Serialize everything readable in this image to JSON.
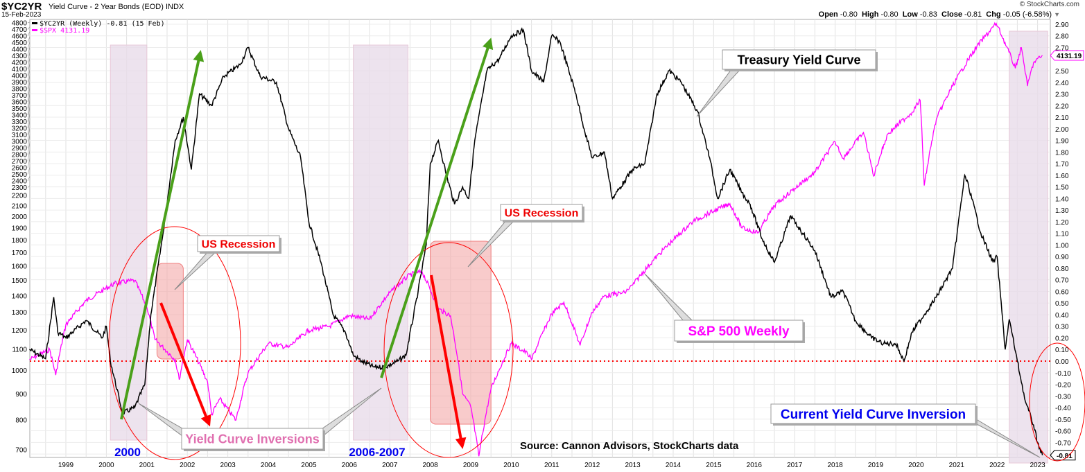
{
  "header": {
    "symbol": "$YC2YR",
    "title": "Yield Curve - 2 Year Bonds (EOD)",
    "exchange": "INDX",
    "date": "15-Feb-2023",
    "brand": "© StockCharts.com",
    "ohlc": {
      "open_label": "Open",
      "open": "-0.80",
      "high_label": "High",
      "high": "-0.80",
      "low_label": "Low",
      "low": "-0.83",
      "close_label": "Close",
      "close": "-0.81",
      "chg_label": "Chg",
      "chg": "-0.05 (-6.58%)"
    }
  },
  "legend": [
    {
      "text": "$YC2YR (Weekly) -0.81 (15 Feb)",
      "color": "#000000"
    },
    {
      "text": "$SPX 4131.19",
      "color": "#ff00ff"
    }
  ],
  "last_values": {
    "spx": "4131.19",
    "yc": "-0.81"
  },
  "annotations": {
    "us_recession_1": "US Recession",
    "us_recession_2": "US Recession",
    "treasury": "Treasury Yield Curve",
    "sp500": "S&P 500 Weekly",
    "inversions": "Yield Curve Inversions",
    "current": "Current Yield Curve Inversion",
    "label_2000": "2000",
    "label_2006": "2006-2007",
    "source": "Source: Cannon Advisors, StockCharts data"
  },
  "colors": {
    "yc": "#000000",
    "spx": "#ff00ff",
    "band": "#e8dcea",
    "recession": "#f4a8a8",
    "ellipse": "#ff0000",
    "green_arrow": "#4aa01a",
    "red_arrow": "#ff0000",
    "blue_text": "#0000ee",
    "pink_text": "#e070b0"
  },
  "chart_data": {
    "type": "line",
    "title": "Yield Curve - 2 Year Bonds (EOD)",
    "x_ticks": [
      "1999",
      "2000",
      "2001",
      "2002",
      "2003",
      "2004",
      "2005",
      "2006",
      "2007",
      "2008",
      "2009",
      "2010",
      "2011",
      "2012",
      "2013",
      "2014",
      "2015",
      "2016",
      "2017",
      "2018",
      "2019",
      "2020",
      "2021",
      "2022",
      "2023"
    ],
    "left_axis": {
      "scale": "log",
      "ticks": [
        700,
        800,
        900,
        1000,
        1100,
        1200,
        1300,
        1400,
        1500,
        1600,
        1700,
        1800,
        1900,
        2000,
        2100,
        2200,
        2300,
        2400,
        2500,
        2600,
        2700,
        2800,
        2900,
        3000,
        3100,
        3200,
        3300,
        3400,
        3500,
        3600,
        3700,
        3800,
        3900,
        4000,
        4100,
        4200,
        4300,
        4400,
        4500,
        4600,
        4700,
        4800
      ]
    },
    "right_axis": {
      "scale": "linear",
      "range": [
        -0.81,
        2.95
      ],
      "ticks": [
        "2.90",
        "2.80",
        "2.70",
        "2.50",
        "2.40",
        "2.30",
        "2.20",
        "2.10",
        "2.00",
        "1.90",
        "1.80",
        "1.70",
        "1.60",
        "1.50",
        "1.40",
        "1.30",
        "1.20",
        "1.10",
        "1.00",
        "0.90",
        "0.80",
        "0.70",
        "0.60",
        "0.50",
        "0.40",
        "0.30",
        "0.20",
        "0.10",
        "0.00",
        "-0.10",
        "-0.20",
        "-0.30",
        "-0.40",
        "-0.50",
        "-0.60",
        "-0.70"
      ]
    },
    "reference_line": 0.0,
    "series": [
      {
        "name": "$YC2YR",
        "axis": "right",
        "x": [
          1998.1,
          1998.5,
          1998.7,
          1998.8,
          1999.0,
          1999.5,
          1999.9,
          2000.0,
          2000.1,
          2000.4,
          2000.7,
          2000.95,
          2001.1,
          2001.4,
          2001.7,
          2001.9,
          2002.1,
          2002.3,
          2002.6,
          2002.9,
          2003.3,
          2003.5,
          2003.8,
          2004.2,
          2004.5,
          2004.8,
          2005.0,
          2005.3,
          2005.6,
          2005.9,
          2006.1,
          2006.3,
          2006.6,
          2006.9,
          2007.2,
          2007.4,
          2007.7,
          2007.9,
          2008.0,
          2008.2,
          2008.4,
          2008.6,
          2008.8,
          2008.95,
          2009.1,
          2009.4,
          2009.7,
          2010.0,
          2010.3,
          2010.5,
          2010.8,
          2011.0,
          2011.2,
          2011.6,
          2011.8,
          2012.0,
          2012.3,
          2012.5,
          2012.8,
          2013.0,
          2013.3,
          2013.6,
          2013.9,
          2014.2,
          2014.6,
          2014.9,
          2015.1,
          2015.4,
          2015.7,
          2015.9,
          2016.2,
          2016.5,
          2016.9,
          2017.2,
          2017.5,
          2017.9,
          2018.2,
          2018.5,
          2018.9,
          2019.2,
          2019.5,
          2019.7,
          2019.9,
          2020.2,
          2020.5,
          2020.9,
          2021.2,
          2021.3,
          2021.6,
          2021.9,
          2022.0,
          2022.2,
          2022.3,
          2022.5,
          2022.7,
          2022.9,
          2023.0,
          2023.12
        ],
        "values": [
          0.1,
          0.02,
          0.55,
          0.25,
          0.2,
          0.35,
          0.2,
          0.3,
          0.0,
          -0.45,
          -0.4,
          -0.2,
          0.4,
          1.1,
          1.9,
          2.1,
          1.65,
          2.3,
          2.2,
          2.45,
          2.55,
          2.7,
          2.45,
          2.4,
          2.0,
          1.75,
          1.2,
          0.85,
          0.4,
          0.25,
          0.05,
          0.0,
          -0.05,
          -0.05,
          0.0,
          0.05,
          0.6,
          1.0,
          1.7,
          1.9,
          1.6,
          1.35,
          1.5,
          1.4,
          1.9,
          2.5,
          2.6,
          2.8,
          2.85,
          2.5,
          2.4,
          2.8,
          2.75,
          2.3,
          2.0,
          1.75,
          1.8,
          1.4,
          1.55,
          1.65,
          1.7,
          2.3,
          2.5,
          2.4,
          2.15,
          1.75,
          1.4,
          1.65,
          1.45,
          1.35,
          1.05,
          0.85,
          1.25,
          1.1,
          0.95,
          0.55,
          0.6,
          0.35,
          0.2,
          0.15,
          0.15,
          0.0,
          0.25,
          0.4,
          0.55,
          0.8,
          1.6,
          1.5,
          1.1,
          0.85,
          0.9,
          0.1,
          0.36,
          0.0,
          -0.35,
          -0.55,
          -0.7,
          -0.81
        ]
      },
      {
        "name": "$SPX",
        "axis": "left",
        "x": [
          1998.1,
          1998.6,
          1998.75,
          1999.0,
          1999.5,
          2000.2,
          2000.7,
          2001.0,
          2001.2,
          2001.7,
          2001.8,
          2002.0,
          2002.5,
          2002.6,
          2002.8,
          2003.2,
          2003.5,
          2004.0,
          2004.5,
          2005.0,
          2005.5,
          2006.0,
          2006.5,
          2007.0,
          2007.5,
          2007.8,
          2008.2,
          2008.5,
          2008.8,
          2009.0,
          2009.2,
          2009.5,
          2010.0,
          2010.4,
          2010.5,
          2011.0,
          2011.3,
          2011.7,
          2012.0,
          2012.3,
          2012.8,
          2013.0,
          2013.5,
          2014.0,
          2014.5,
          2015.0,
          2015.4,
          2015.7,
          2016.1,
          2016.5,
          2017.0,
          2017.5,
          2018.0,
          2018.2,
          2018.7,
          2018.95,
          2019.3,
          2019.9,
          2020.1,
          2020.2,
          2020.5,
          2020.9,
          2021.5,
          2021.98,
          2022.45,
          2022.6,
          2022.75,
          2022.9,
          2023.12
        ],
        "values": [
          1050,
          1100,
          980,
          1230,
          1370,
          1480,
          1500,
          1330,
          1150,
          1050,
          960,
          1150,
          950,
          820,
          880,
          800,
          990,
          1130,
          1110,
          1200,
          1220,
          1280,
          1260,
          1420,
          1540,
          1560,
          1320,
          1280,
          900,
          850,
          680,
          920,
          1130,
          1080,
          1050,
          1290,
          1360,
          1120,
          1300,
          1400,
          1420,
          1470,
          1640,
          1800,
          1960,
          2050,
          2120,
          1900,
          1860,
          2100,
          2270,
          2440,
          2800,
          2600,
          2920,
          2400,
          2900,
          3200,
          3380,
          2300,
          3100,
          3600,
          4300,
          4770,
          3900,
          4280,
          3600,
          4000,
          4131.19
        ]
      }
    ],
    "shaded_periods": [
      [
        2000.1,
        2001.0
      ],
      [
        2006.1,
        2007.45
      ],
      [
        2022.3,
        2023.25
      ]
    ],
    "recessions": [
      [
        2001.25,
        2001.9
      ],
      [
        2008.0,
        2009.5
      ]
    ]
  }
}
